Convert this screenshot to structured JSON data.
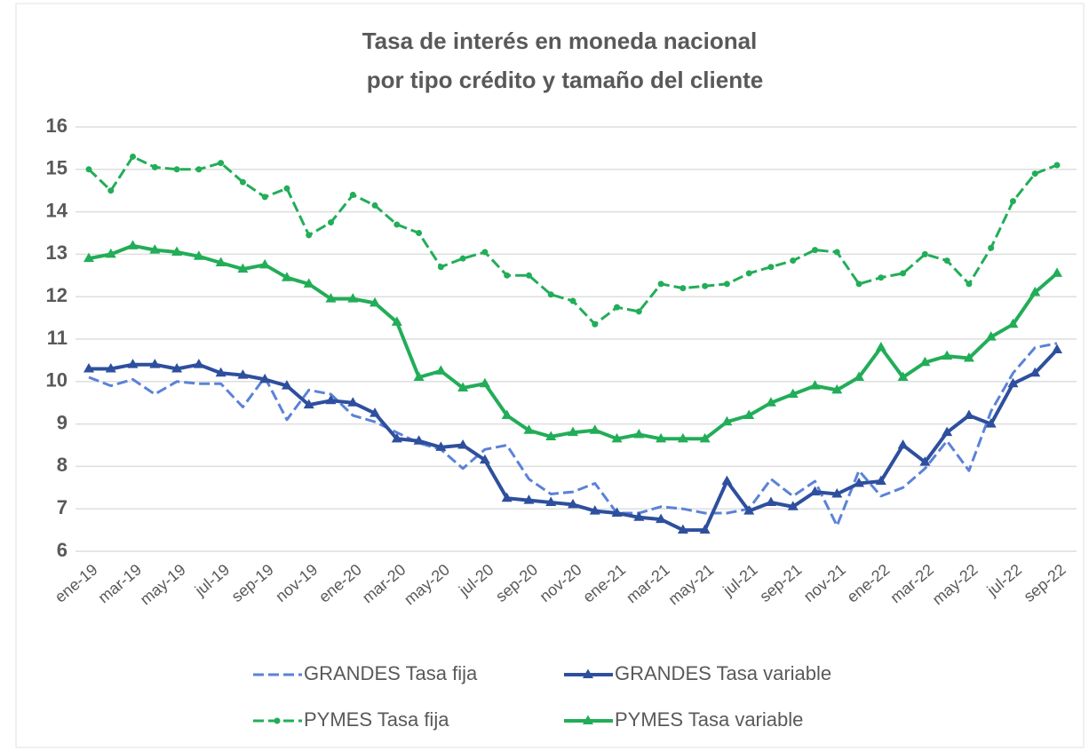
{
  "chart_data": {
    "type": "line",
    "title": [
      "Tasa de interés en moneda nacional",
      "por tipo crédito y tamaño del cliente"
    ],
    "categories": [
      "ene-19",
      null,
      "mar-19",
      null,
      "may-19",
      null,
      "jul-19",
      null,
      "sep-19",
      null,
      "nov-19",
      null,
      "ene-20",
      null,
      "mar-20",
      null,
      "may-20",
      null,
      "jul-20",
      null,
      "sep-20",
      null,
      "nov-20",
      null,
      "ene-21",
      null,
      "mar-21",
      null,
      "may-21",
      null,
      "jul-21",
      null,
      "sep-21",
      null,
      "nov-21",
      null,
      "ene-22",
      null,
      "mar-22",
      null,
      "may-22",
      null,
      "jul-22",
      null,
      "sep-22"
    ],
    "ylim": [
      6,
      16
    ],
    "yticks": [
      6,
      7,
      8,
      9,
      10,
      11,
      12,
      13,
      14,
      15,
      16
    ],
    "grid": true,
    "series": [
      {
        "name": "GRANDES Tasa fija",
        "color": "#5b82d8",
        "style": "dashed",
        "marker": "none",
        "values": [
          10.1,
          9.9,
          10.05,
          9.7,
          10.0,
          9.95,
          9.95,
          9.4,
          10.1,
          9.1,
          9.8,
          9.7,
          9.2,
          9.05,
          8.8,
          8.55,
          8.4,
          7.95,
          8.4,
          8.5,
          7.7,
          7.35,
          7.4,
          7.6,
          6.9,
          6.9,
          7.05,
          7.0,
          6.9,
          6.9,
          7.0,
          7.7,
          7.3,
          7.65,
          6.6,
          7.9,
          7.3,
          7.5,
          7.95,
          8.6,
          7.9,
          9.3,
          10.2,
          10.8,
          10.9
        ]
      },
      {
        "name": "GRANDES Tasa variable",
        "color": "#2e4f9e",
        "style": "solid",
        "marker": "triangle",
        "values": [
          10.3,
          10.3,
          10.4,
          10.4,
          10.3,
          10.4,
          10.2,
          10.15,
          10.05,
          9.9,
          9.45,
          9.55,
          9.5,
          9.25,
          8.65,
          8.6,
          8.45,
          8.5,
          8.15,
          7.25,
          7.2,
          7.15,
          7.1,
          6.95,
          6.9,
          6.8,
          6.75,
          6.5,
          6.5,
          7.65,
          6.95,
          7.15,
          7.05,
          7.4,
          7.35,
          7.6,
          7.65,
          8.5,
          8.1,
          8.8,
          9.2,
          9.0,
          9.95,
          10.2,
          10.75
        ]
      },
      {
        "name": "PYMES Tasa fija",
        "color": "#22ad58",
        "style": "dashed",
        "marker": "circle",
        "values": [
          15.0,
          14.5,
          15.3,
          15.05,
          15.0,
          15.0,
          15.15,
          14.7,
          14.35,
          14.55,
          13.45,
          13.75,
          14.4,
          14.15,
          13.7,
          13.5,
          12.7,
          12.9,
          13.05,
          12.5,
          12.5,
          12.05,
          11.9,
          11.35,
          11.75,
          11.65,
          12.3,
          12.2,
          12.25,
          12.3,
          12.55,
          12.7,
          12.85,
          13.1,
          13.05,
          12.3,
          12.45,
          12.55,
          13.0,
          12.85,
          12.3,
          13.15,
          14.25,
          14.9,
          15.1
        ]
      },
      {
        "name": "PYMES Tasa variable",
        "color": "#22ad58",
        "style": "solid",
        "marker": "triangle",
        "values": [
          12.9,
          13.0,
          13.2,
          13.1,
          13.05,
          12.95,
          12.8,
          12.65,
          12.75,
          12.45,
          12.3,
          11.95,
          11.95,
          11.85,
          11.4,
          10.1,
          10.25,
          9.85,
          9.95,
          9.2,
          8.85,
          8.7,
          8.8,
          8.85,
          8.65,
          8.75,
          8.65,
          8.65,
          8.65,
          9.05,
          9.2,
          9.5,
          9.7,
          9.9,
          9.8,
          10.1,
          10.8,
          10.1,
          10.45,
          10.6,
          10.55,
          11.05,
          11.35,
          12.1,
          12.55
        ]
      }
    ]
  }
}
